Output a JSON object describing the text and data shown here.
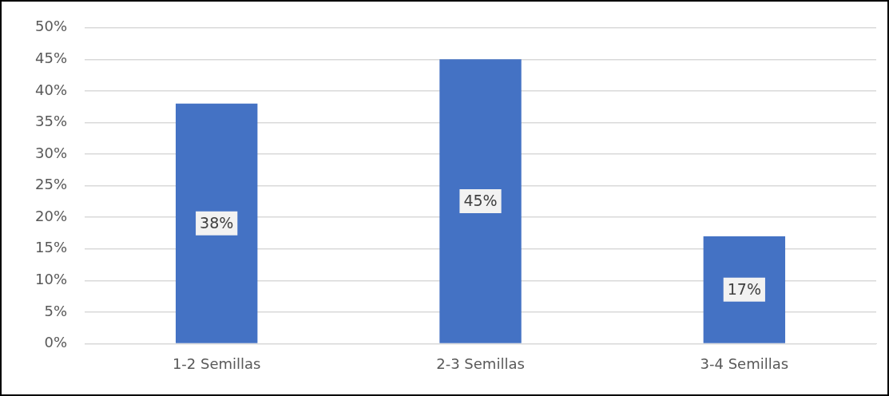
{
  "chart_data": {
    "type": "bar",
    "categories": [
      "1-2 Semillas",
      "2-3 Semillas",
      "3-4 Semillas"
    ],
    "values": [
      38,
      45,
      17
    ],
    "color": "#4472c4",
    "value_labels": [
      "38%",
      "45%",
      "17%"
    ],
    "ylim": [
      0,
      50
    ],
    "yticks": [
      {
        "value": 0,
        "label": "0%"
      },
      {
        "value": 5,
        "label": "5%"
      },
      {
        "value": 10,
        "label": "10%"
      },
      {
        "value": 15,
        "label": "15%"
      },
      {
        "value": 20,
        "label": "20%"
      },
      {
        "value": 25,
        "label": "25%"
      },
      {
        "value": 30,
        "label": "30%"
      },
      {
        "value": 35,
        "label": "35%"
      },
      {
        "value": 40,
        "label": "40%"
      },
      {
        "value": 45,
        "label": "45%"
      },
      {
        "value": 50,
        "label": "50%"
      }
    ],
    "grid": "y"
  }
}
